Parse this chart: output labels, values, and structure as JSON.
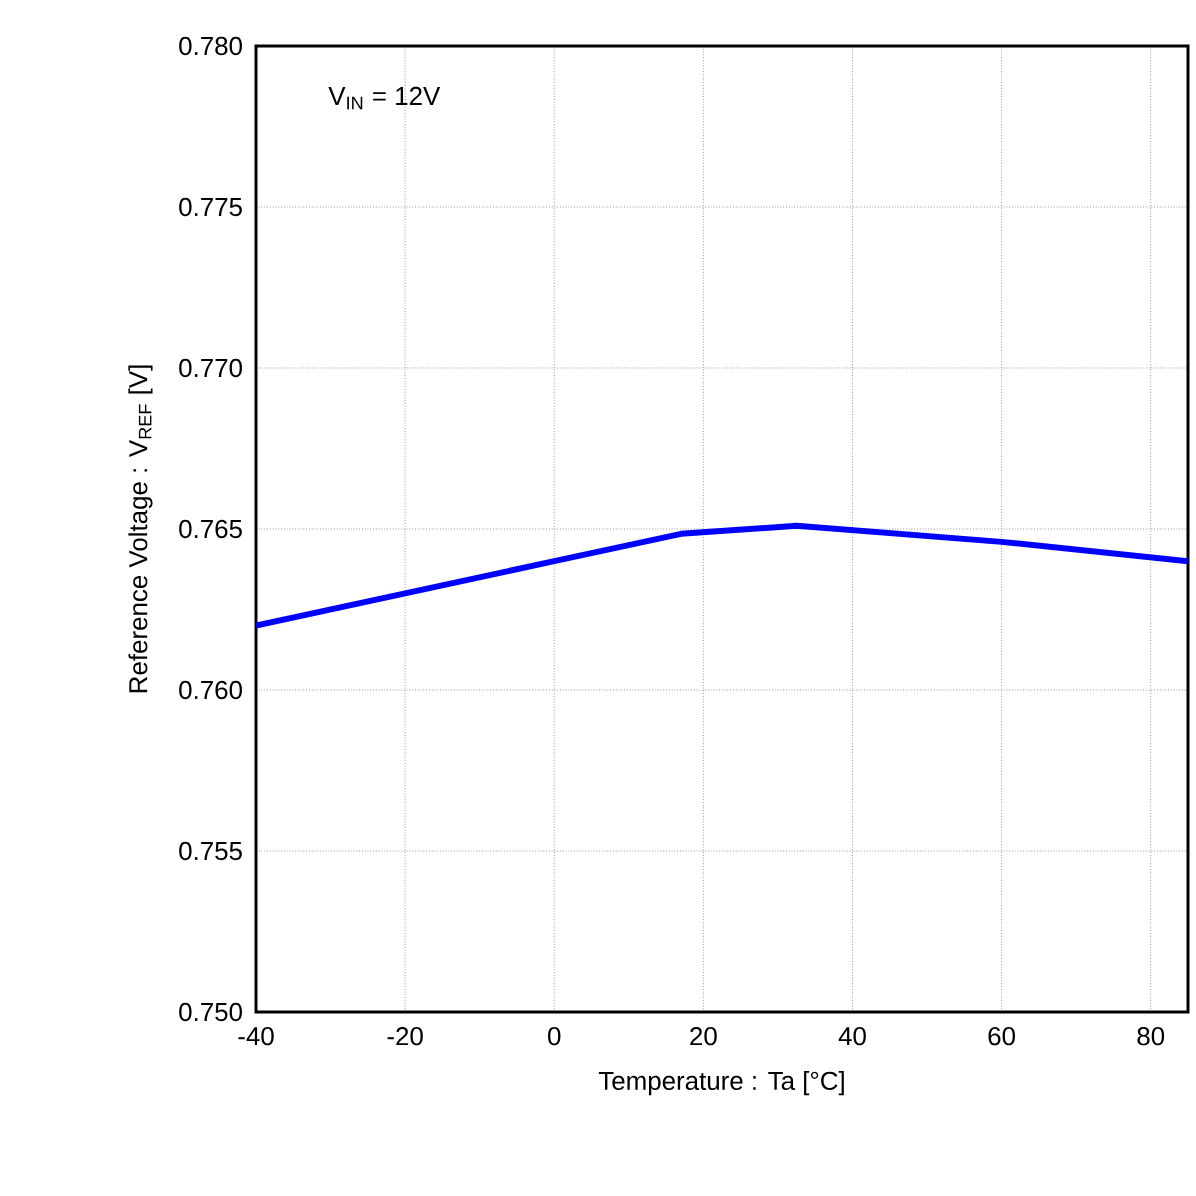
{
  "chart_data": {
    "type": "line",
    "xlabel": "Temperature : Ta [°C]",
    "ylabel": "Reference Voltage : V$_{REF}$ [V]",
    "annotations": [
      "V$_{IN}$ = 12V"
    ],
    "x": [
      -40,
      -20,
      0,
      17,
      32.5,
      60,
      85
    ],
    "series": [
      {
        "color": "#0000ff",
        "values": [
          0.762,
          0.763,
          0.764,
          0.76485,
          0.7651,
          0.7646,
          0.764
        ]
      }
    ],
    "xlim": [
      -40,
      85
    ],
    "ylim": [
      0.75,
      0.78
    ],
    "xticks": [
      -40,
      -20,
      0,
      20,
      40,
      60,
      80
    ],
    "yticks": [
      {
        "value": 0.75,
        "label": "0.750"
      },
      {
        "value": 0.755,
        "label": "0.755"
      },
      {
        "value": 0.76,
        "label": "0.760"
      },
      {
        "value": 0.765,
        "label": "0.765"
      },
      {
        "value": 0.77,
        "label": "0.770"
      },
      {
        "value": 0.775,
        "label": "0.775"
      },
      {
        "value": 0.78,
        "label": "0.780"
      }
    ],
    "grid": true,
    "line_style": "solid",
    "marker": "none"
  }
}
